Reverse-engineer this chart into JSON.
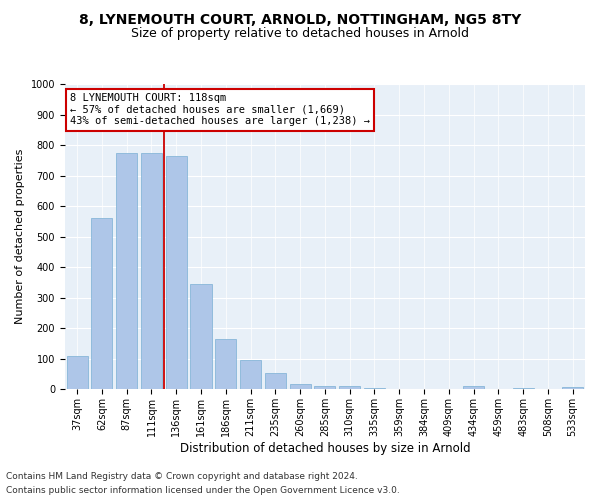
{
  "title1": "8, LYNEMOUTH COURT, ARNOLD, NOTTINGHAM, NG5 8TY",
  "title2": "Size of property relative to detached houses in Arnold",
  "xlabel": "Distribution of detached houses by size in Arnold",
  "ylabel": "Number of detached properties",
  "categories": [
    "37sqm",
    "62sqm",
    "87sqm",
    "111sqm",
    "136sqm",
    "161sqm",
    "186sqm",
    "211sqm",
    "235sqm",
    "260sqm",
    "285sqm",
    "310sqm",
    "335sqm",
    "359sqm",
    "384sqm",
    "409sqm",
    "434sqm",
    "459sqm",
    "483sqm",
    "508sqm",
    "533sqm"
  ],
  "values": [
    110,
    560,
    775,
    775,
    765,
    345,
    165,
    97,
    55,
    18,
    12,
    10,
    5,
    2,
    2,
    2,
    10,
    2,
    5,
    2,
    8
  ],
  "bar_color": "#aec6e8",
  "bar_edge_color": "#7aafd4",
  "vline_color": "#cc0000",
  "annotation_text": "8 LYNEMOUTH COURT: 118sqm\n← 57% of detached houses are smaller (1,669)\n43% of semi-detached houses are larger (1,238) →",
  "annotation_box_color": "#ffffff",
  "annotation_edge_color": "#cc0000",
  "ylim": [
    0,
    1000
  ],
  "yticks": [
    0,
    100,
    200,
    300,
    400,
    500,
    600,
    700,
    800,
    900,
    1000
  ],
  "plot_bg_color": "#e8f0f8",
  "footer1": "Contains HM Land Registry data © Crown copyright and database right 2024.",
  "footer2": "Contains public sector information licensed under the Open Government Licence v3.0.",
  "title1_fontsize": 10,
  "title2_fontsize": 9,
  "xlabel_fontsize": 8.5,
  "ylabel_fontsize": 8,
  "tick_fontsize": 7,
  "footer_fontsize": 6.5,
  "annotation_fontsize": 7.5
}
